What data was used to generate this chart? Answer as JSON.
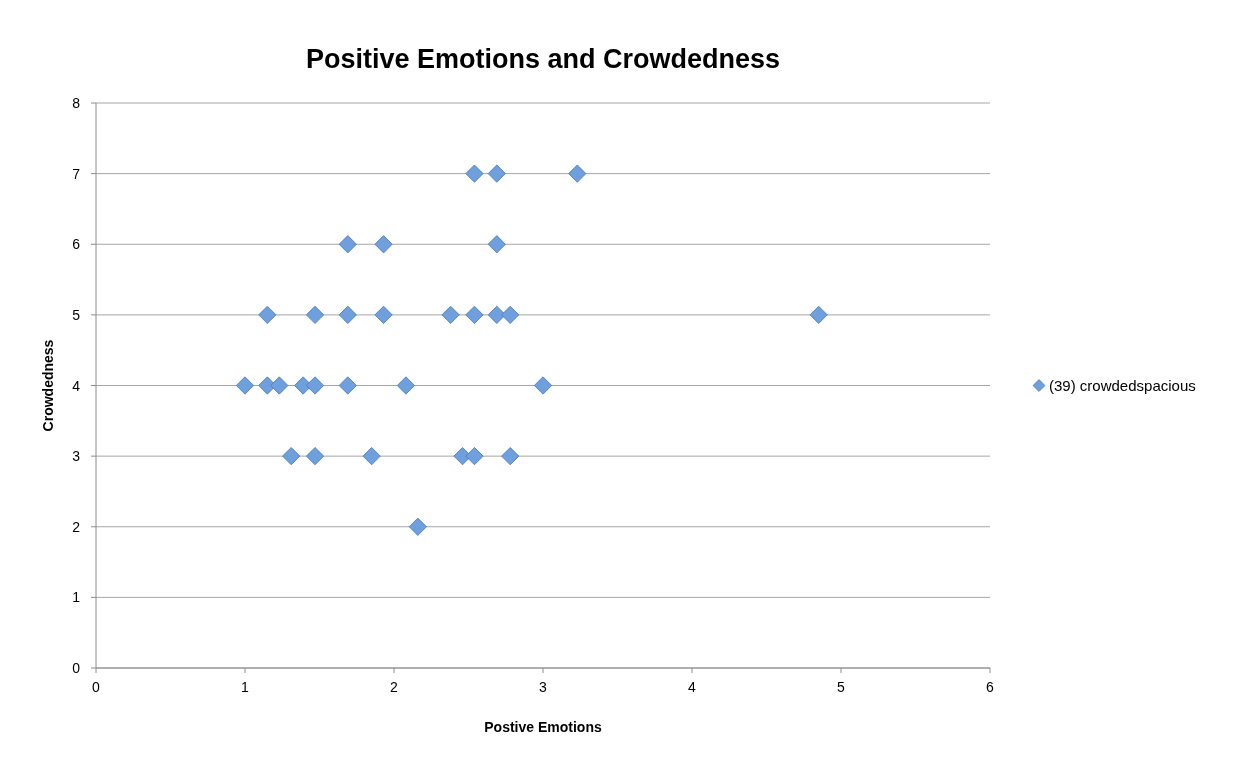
{
  "chart_data": {
    "type": "scatter",
    "title": "Positive Emotions and Crowdedness",
    "xlabel": "Postive Emotions",
    "ylabel": "Crowdedness",
    "xlim": [
      0,
      6
    ],
    "xticks": [
      0,
      1,
      2,
      3,
      4,
      5,
      6
    ],
    "ylim": [
      0,
      8
    ],
    "yticks": [
      0,
      1,
      2,
      3,
      4,
      5,
      6,
      7,
      8
    ],
    "grid": "y",
    "legend": "right",
    "marker": "diamond",
    "series": [
      {
        "name": "(39) crowdedspacious",
        "color": "#6f9fdc",
        "x": [
          2.54,
          2.69,
          3.23,
          1.69,
          1.93,
          2.69,
          1.15,
          1.47,
          1.69,
          1.93,
          2.38,
          2.54,
          2.69,
          2.78,
          4.85,
          1.0,
          1.15,
          1.23,
          1.39,
          1.47,
          1.69,
          2.08,
          3.0,
          1.31,
          1.47,
          1.85,
          2.46,
          2.54,
          2.78,
          2.16
        ],
        "values": [
          7,
          7,
          7,
          6,
          6,
          6,
          5,
          5,
          5,
          5,
          5,
          5,
          5,
          5,
          5,
          4,
          4,
          4,
          4,
          4,
          4,
          4,
          4,
          3,
          3,
          3,
          3,
          3,
          3,
          2
        ]
      }
    ]
  }
}
